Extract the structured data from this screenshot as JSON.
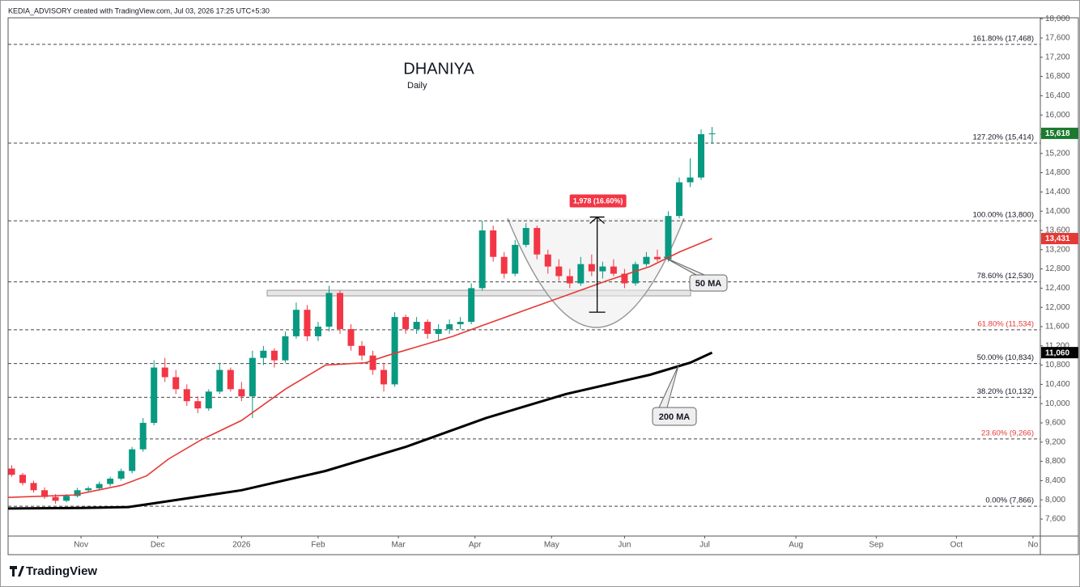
{
  "header": "KEDIA_ADVISORY created with TradingView.com, Jul 03, 2026 17:25 UTC+5:30",
  "footer": "TradingView",
  "chart_data": {
    "type": "candlestick",
    "title": "DHANIYA",
    "subtitle": "Daily",
    "up_color": "#089981",
    "down_color": "#f23645",
    "xlim": [
      0,
      283
    ],
    "xticks": [
      {
        "value": 20,
        "label": "Nov"
      },
      {
        "value": 41,
        "label": "Dec"
      },
      {
        "value": 64,
        "label": "2026"
      },
      {
        "value": 85,
        "label": "Feb"
      },
      {
        "value": 107,
        "label": "Mar"
      },
      {
        "value": 128,
        "label": "Apr"
      },
      {
        "value": 149,
        "label": "May"
      },
      {
        "value": 169,
        "label": "Jun"
      },
      {
        "value": 191,
        "label": "Jul"
      },
      {
        "value": 216,
        "label": "Aug"
      },
      {
        "value": 238,
        "label": "Sep"
      },
      {
        "value": 260,
        "label": "Oct"
      },
      {
        "value": 281,
        "label": "No"
      }
    ],
    "ylim": [
      7247,
      18020
    ],
    "yticks": [
      {
        "value": 7600,
        "label": "7,600"
      },
      {
        "value": 8000,
        "label": "8,000"
      },
      {
        "value": 8400,
        "label": "8,400"
      },
      {
        "value": 8800,
        "label": "8,800"
      },
      {
        "value": 9200,
        "label": "9,200"
      },
      {
        "value": 9600,
        "label": "9,600"
      },
      {
        "value": 10000,
        "label": "10,000"
      },
      {
        "value": 10400,
        "label": "10,400"
      },
      {
        "value": 10800,
        "label": "10,800"
      },
      {
        "value": 11200,
        "label": "11,200"
      },
      {
        "value": 11600,
        "label": "11,600"
      },
      {
        "value": 12000,
        "label": "12,000"
      },
      {
        "value": 12400,
        "label": "12,400"
      },
      {
        "value": 12800,
        "label": "12,800"
      },
      {
        "value": 13200,
        "label": "13,200"
      },
      {
        "value": 13600,
        "label": "13,600"
      },
      {
        "value": 14000,
        "label": "14,000"
      },
      {
        "value": 14400,
        "label": "14,400"
      },
      {
        "value": 14800,
        "label": "14,800"
      },
      {
        "value": 15200,
        "label": "15,200"
      },
      {
        "value": 15600,
        "label": "15,600"
      },
      {
        "value": 16000,
        "label": "16,000"
      },
      {
        "value": 16400,
        "label": "16,400"
      },
      {
        "value": 16800,
        "label": "16,800"
      },
      {
        "value": 17200,
        "label": "17,200"
      },
      {
        "value": 17600,
        "label": "17,600"
      },
      {
        "value": 18000,
        "label": "18,000"
      }
    ],
    "candles": {
      "x": [
        1,
        4,
        7,
        10,
        13,
        16,
        19,
        22,
        25,
        28,
        31,
        34,
        37,
        40,
        43,
        46,
        49,
        52,
        55,
        58,
        61,
        64,
        67,
        70,
        73,
        76,
        79,
        82,
        85,
        88,
        91,
        94,
        97,
        100,
        103,
        106,
        109,
        112,
        115,
        118,
        121,
        124,
        127,
        130,
        133,
        136,
        139,
        142,
        145,
        148,
        151,
        154,
        157,
        160,
        163,
        166,
        169,
        172,
        175,
        178,
        181,
        184,
        187,
        190,
        193
      ],
      "open": [
        8650,
        8520,
        8350,
        8200,
        8060,
        7980,
        8080,
        8200,
        8240,
        8330,
        8440,
        8600,
        9050,
        9600,
        10750,
        10550,
        10300,
        10050,
        9900,
        10250,
        10700,
        10300,
        10150,
        10950,
        11100,
        10900,
        11400,
        11950,
        11400,
        11600,
        12300,
        11550,
        11200,
        11000,
        10700,
        10400,
        11800,
        11550,
        11700,
        11450,
        11550,
        11650,
        11700,
        12400,
        13600,
        13050,
        12700,
        13300,
        13650,
        13100,
        12850,
        12650,
        12500,
        12900,
        12750,
        12850,
        12700,
        12500,
        12900,
        13050,
        13000,
        13900,
        14600,
        14700,
        15600
      ],
      "high": [
        8720,
        8560,
        8400,
        8260,
        8120,
        8120,
        8250,
        8280,
        8380,
        8480,
        8650,
        9100,
        9700,
        10900,
        10950,
        10700,
        10400,
        10150,
        10300,
        10850,
        10750,
        10450,
        11100,
        11200,
        11150,
        11500,
        12100,
        12050,
        11700,
        12450,
        12350,
        11650,
        11300,
        11100,
        10850,
        11900,
        11850,
        11800,
        11750,
        11650,
        11750,
        11800,
        12500,
        13800,
        13700,
        13150,
        13400,
        13750,
        13700,
        13200,
        13000,
        12800,
        13050,
        13100,
        12950,
        13000,
        12800,
        12950,
        13150,
        13200,
        14000,
        14700,
        15100,
        15700,
        15750
      ],
      "low": [
        8480,
        8300,
        8150,
        8020,
        7920,
        7950,
        8050,
        8150,
        8200,
        8280,
        8400,
        8550,
        9000,
        9550,
        10450,
        10200,
        9950,
        9800,
        9850,
        10200,
        10250,
        10050,
        9700,
        10800,
        10750,
        10850,
        11350,
        11300,
        11300,
        11500,
        11450,
        11100,
        10900,
        10600,
        10250,
        10350,
        11450,
        11450,
        11350,
        11300,
        11450,
        11550,
        11650,
        12350,
        12950,
        12600,
        12650,
        13250,
        13000,
        12700,
        12550,
        12400,
        12450,
        12650,
        12600,
        12650,
        12400,
        12450,
        12850,
        12950,
        12950,
        13850,
        14500,
        14650,
        15400
      ],
      "close": [
        8520,
        8350,
        8200,
        8060,
        7980,
        8080,
        8200,
        8240,
        8330,
        8440,
        8600,
        9050,
        9600,
        10750,
        10550,
        10300,
        10050,
        9900,
        10250,
        10700,
        10300,
        10150,
        10950,
        11100,
        10900,
        11400,
        11950,
        11400,
        11600,
        12300,
        11550,
        11200,
        11000,
        10700,
        10400,
        11800,
        11550,
        11700,
        11450,
        11550,
        11650,
        11700,
        12400,
        13600,
        13050,
        12700,
        13300,
        13650,
        13100,
        12850,
        12650,
        12500,
        12900,
        12750,
        12850,
        12700,
        12500,
        12900,
        13050,
        13000,
        13900,
        14600,
        14700,
        15600,
        15618
      ]
    },
    "series": [
      {
        "name": "50 MA",
        "color": "#e53935",
        "width": 1.6,
        "x": [
          0,
          18,
          31,
          38,
          44,
          53,
          64,
          76,
          87,
          98,
          104,
          113,
          122,
          131,
          142,
          153,
          164,
          176,
          184,
          193
        ],
        "values": [
          8050,
          8100,
          8300,
          8500,
          8850,
          9250,
          9650,
          10300,
          10800,
          10850,
          11000,
          11200,
          11400,
          11650,
          11950,
          12250,
          12550,
          12850,
          13150,
          13431
        ]
      },
      {
        "name": "200 MA",
        "color": "#000000",
        "width": 3,
        "x": [
          0,
          20,
          33,
          42,
          64,
          87,
          109,
          131,
          153,
          176,
          187,
          193
        ],
        "values": [
          7820,
          7830,
          7850,
          7950,
          8200,
          8600,
          9100,
          9700,
          10200,
          10600,
          10850,
          11060
        ]
      }
    ],
    "fib_levels": [
      {
        "value": 17468,
        "label": "161.80% (17,468)",
        "color": "#131722"
      },
      {
        "value": 15414,
        "label": "127.20% (15,414)",
        "color": "#131722"
      },
      {
        "value": 13800,
        "label": "100.00% (13,800)",
        "color": "#131722"
      },
      {
        "value": 12530,
        "label": "78.60% (12,530)",
        "color": "#131722"
      },
      {
        "value": 11534,
        "label": "61.80% (11,534)",
        "color": "#e53935"
      },
      {
        "value": 10834,
        "label": "50.00% (10,834)",
        "color": "#131722"
      },
      {
        "value": 10132,
        "label": "38.20% (10,132)",
        "color": "#131722"
      },
      {
        "value": 9266,
        "label": "23.60% (9,266)",
        "color": "#e53935"
      },
      {
        "value": 7866,
        "label": "0.00% (7,866)",
        "color": "#131722"
      }
    ],
    "price_tags": [
      {
        "value": 15618,
        "label": "15,618",
        "color": "#1b7a2e"
      },
      {
        "value": 13431,
        "label": "13,431",
        "color": "#e53935"
      },
      {
        "value": 11060,
        "label": "11,060",
        "color": "#000000"
      }
    ],
    "measure": {
      "x": 161.5,
      "from": 11900,
      "to": 13878,
      "label": "1,978 (16.60%)",
      "color": "#f23645"
    }
  }
}
